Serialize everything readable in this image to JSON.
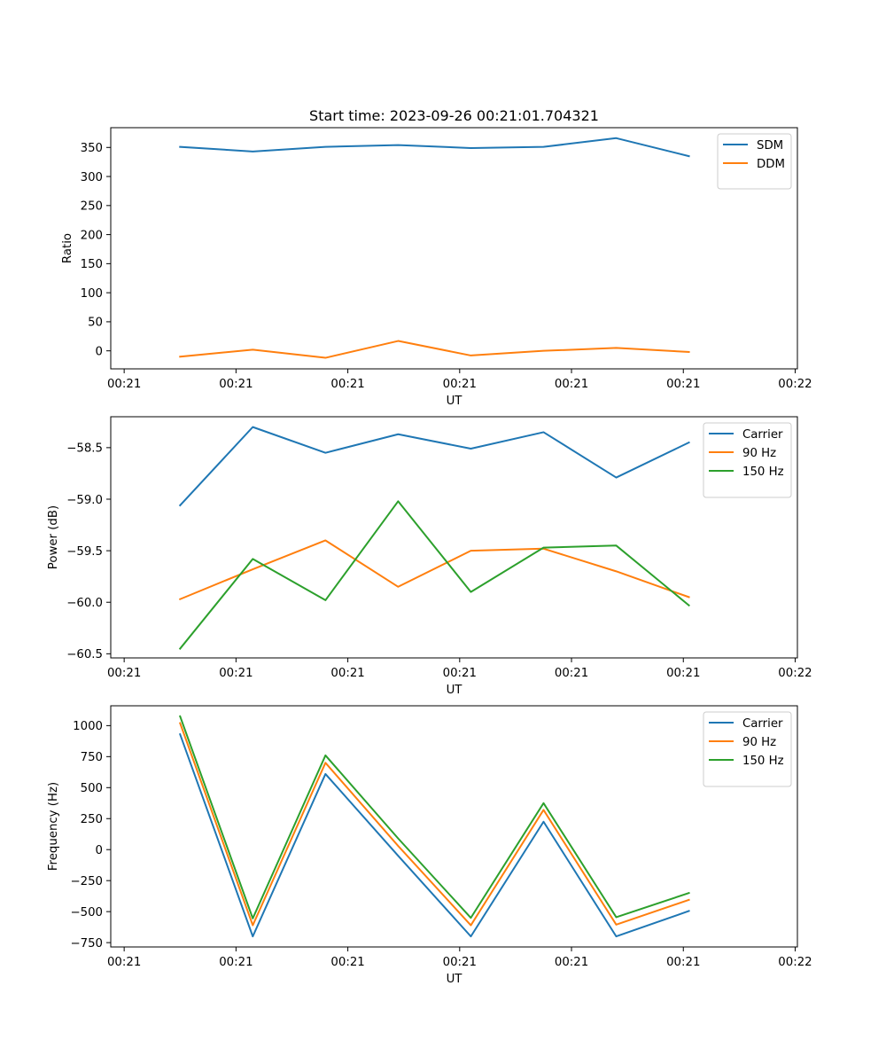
{
  "title": "Start time: 2023-09-26 00:21:01.704321",
  "chart_data": [
    {
      "type": "line",
      "xlabel": "UT",
      "ylabel": "Ratio",
      "x_tick_labels": [
        "00:21",
        "00:21",
        "00:21",
        "00:21",
        "00:21",
        "00:21",
        "00:22"
      ],
      "x_ticks": [
        0,
        1,
        2,
        3,
        4,
        5,
        6
      ],
      "xlim": [
        -0.12,
        6.02
      ],
      "x": [
        0.5,
        1.15,
        1.8,
        2.45,
        3.1,
        3.75,
        4.4,
        5.05
      ],
      "ylim": [
        -31,
        384
      ],
      "yticks": [
        0,
        50,
        100,
        150,
        200,
        250,
        300,
        350
      ],
      "legend": "top-right",
      "series": [
        {
          "name": "SDM",
          "color": "#1f77b4",
          "values": [
            351,
            343,
            351,
            354,
            349,
            351,
            366,
            335
          ]
        },
        {
          "name": "DDM",
          "color": "#ff7f0e",
          "values": [
            -10,
            2,
            -12,
            17,
            -8,
            0,
            5,
            -2
          ]
        }
      ]
    },
    {
      "type": "line",
      "xlabel": "UT",
      "ylabel": "Power (dB)",
      "x_tick_labels": [
        "00:21",
        "00:21",
        "00:21",
        "00:21",
        "00:21",
        "00:21",
        "00:22"
      ],
      "x_ticks": [
        0,
        1,
        2,
        3,
        4,
        5,
        6
      ],
      "xlim": [
        -0.12,
        6.02
      ],
      "x": [
        0.5,
        1.15,
        1.8,
        2.45,
        3.1,
        3.75,
        4.4,
        5.05
      ],
      "ylim": [
        -60.54,
        -58.2
      ],
      "yticks": [
        -60.5,
        -60.0,
        -59.5,
        -59.0,
        -58.5
      ],
      "ytick_labels": [
        "−60.5",
        "−60.0",
        "−59.5",
        "−59.0",
        "−58.5"
      ],
      "legend": "top-right",
      "series": [
        {
          "name": "Carrier",
          "color": "#1f77b4",
          "values": [
            -59.06,
            -58.3,
            -58.55,
            -58.37,
            -58.51,
            -58.35,
            -58.79,
            -58.45
          ]
        },
        {
          "name": "90 Hz",
          "color": "#ff7f0e",
          "values": [
            -59.97,
            -59.68,
            -59.4,
            -59.85,
            -59.5,
            -59.48,
            -59.7,
            -59.95
          ]
        },
        {
          "name": "150 Hz",
          "color": "#2ca02c",
          "values": [
            -60.45,
            -59.58,
            -59.98,
            -59.02,
            -59.9,
            -59.47,
            -59.45,
            -60.03
          ]
        }
      ]
    },
    {
      "type": "line",
      "xlabel": "UT",
      "ylabel": "Frequency (Hz)",
      "x_tick_labels": [
        "00:21",
        "00:21",
        "00:21",
        "00:21",
        "00:21",
        "00:21",
        "00:22"
      ],
      "x_ticks": [
        0,
        1,
        2,
        3,
        4,
        5,
        6
      ],
      "xlim": [
        -0.12,
        6.02
      ],
      "x": [
        0.5,
        1.15,
        1.8,
        2.45,
        3.1,
        3.75,
        4.4,
        5.05
      ],
      "ylim": [
        -785,
        1160
      ],
      "yticks": [
        -750,
        -500,
        -250,
        0,
        250,
        500,
        750,
        1000
      ],
      "ytick_labels": [
        "−750",
        "−500",
        "−250",
        "0",
        "250",
        "500",
        "750",
        "1000"
      ],
      "legend": "top-right",
      "series": [
        {
          "name": "Carrier",
          "color": "#1f77b4",
          "values": [
            930,
            -700,
            610,
            -50,
            -700,
            225,
            -700,
            -495
          ]
        },
        {
          "name": "90 Hz",
          "color": "#ff7f0e",
          "values": [
            1020,
            -610,
            700,
            30,
            -610,
            320,
            -605,
            -405
          ]
        },
        {
          "name": "150 Hz",
          "color": "#2ca02c",
          "values": [
            1075,
            -555,
            760,
            90,
            -550,
            375,
            -545,
            -350
          ]
        }
      ]
    }
  ]
}
